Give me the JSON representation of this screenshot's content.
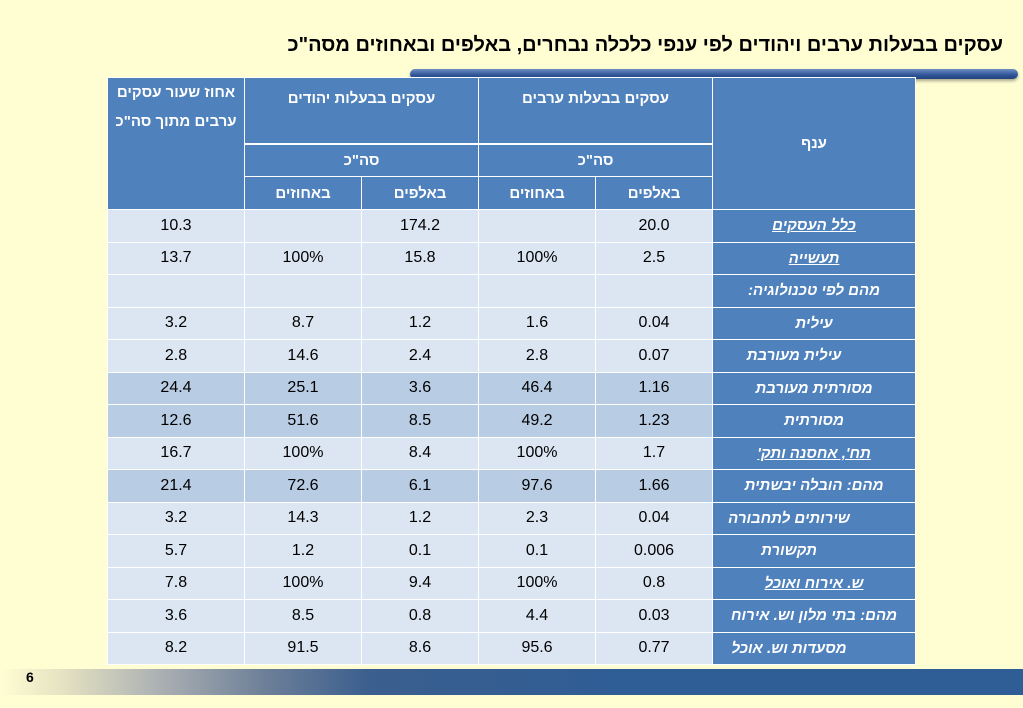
{
  "title": "עסקים בבעלות ערבים ויהודים לפי ענפי כלכלה נבחרים, באלפים ובאחוזים מסה\"כ",
  "page_number": "6",
  "colors": {
    "header_blue": "#4f81bd",
    "cell_light": "#dce6f2",
    "cell_highlight": "#b8cce4",
    "background": "#fffed3"
  },
  "header": {
    "branch": "ענף",
    "arab_businesses": "עסקים בבעלות ערבים",
    "jewish_businesses": "עסקים בבעלות יהודים",
    "pct_arab": "אחוז שעור עסקים ערבים מתוך סה\"כ",
    "total": "סה\"כ",
    "thousands": "באלפים",
    "percents": "באחוזים"
  },
  "rows": [
    {
      "label": "כלל העסקים",
      "arab_thousands": "20.0",
      "arab_percent": "",
      "jew_thousands": "174.2",
      "jew_percent": "",
      "pct_arab": "10.3"
    },
    {
      "label": "תעשייה",
      "arab_thousands": "2.5",
      "arab_percent": "100%",
      "jew_thousands": "15.8",
      "jew_percent": "100%",
      "pct_arab": "13.7"
    },
    {
      "label": "מהם לפי טכנולוגיה:",
      "arab_thousands": "",
      "arab_percent": "",
      "jew_thousands": "",
      "jew_percent": "",
      "pct_arab": ""
    },
    {
      "label": "עילית",
      "arab_thousands": "0.04",
      "arab_percent": "1.6",
      "jew_thousands": "1.2",
      "jew_percent": "8.7",
      "pct_arab": "3.2"
    },
    {
      "label": "עילית מעורבת",
      "arab_thousands": "0.07",
      "arab_percent": "2.8",
      "jew_thousands": "2.4",
      "jew_percent": "14.6",
      "pct_arab": "2.8"
    },
    {
      "label": "מסורתית מעורבת",
      "arab_thousands": "1.16",
      "arab_percent": "46.4",
      "jew_thousands": "3.6",
      "jew_percent": "25.1",
      "pct_arab": "24.4"
    },
    {
      "label": "מסורתית",
      "arab_thousands": "1.23",
      "arab_percent": "49.2",
      "jew_thousands": "8.5",
      "jew_percent": "51.6",
      "pct_arab": "12.6"
    },
    {
      "label": "תח', אחסנה ותק'",
      "arab_thousands": "1.7",
      "arab_percent": "100%",
      "jew_thousands": "8.4",
      "jew_percent": "100%",
      "pct_arab": "16.7"
    },
    {
      "label": "מהם:  הובלה יבשתית",
      "arab_thousands": "1.66",
      "arab_percent": "97.6",
      "jew_thousands": "6.1",
      "jew_percent": "72.6",
      "pct_arab": "21.4"
    },
    {
      "label": "שירותים לתחבורה",
      "arab_thousands": "0.04",
      "arab_percent": "2.3",
      "jew_thousands": "1.2",
      "jew_percent": "14.3",
      "pct_arab": "3.2"
    },
    {
      "label": "תקשורת",
      "arab_thousands": "0.006",
      "arab_percent": "0.1",
      "jew_thousands": "0.1",
      "jew_percent": "1.2",
      "pct_arab": "5.7"
    },
    {
      "label": "ש. אירוח ואוכל",
      "arab_thousands": "0.8",
      "arab_percent": "100%",
      "jew_thousands": "9.4",
      "jew_percent": "100%",
      "pct_arab": "7.8"
    },
    {
      "label": "מהם: בתי מלון וש. אירוח",
      "arab_thousands": "0.03",
      "arab_percent": "4.4",
      "jew_thousands": "0.8",
      "jew_percent": "8.5",
      "pct_arab": "3.6"
    },
    {
      "label": "מסעדות וש. אוכל",
      "arab_thousands": "0.77",
      "arab_percent": "95.6",
      "jew_thousands": "8.6",
      "jew_percent": "91.5",
      "pct_arab": "8.2"
    }
  ]
}
